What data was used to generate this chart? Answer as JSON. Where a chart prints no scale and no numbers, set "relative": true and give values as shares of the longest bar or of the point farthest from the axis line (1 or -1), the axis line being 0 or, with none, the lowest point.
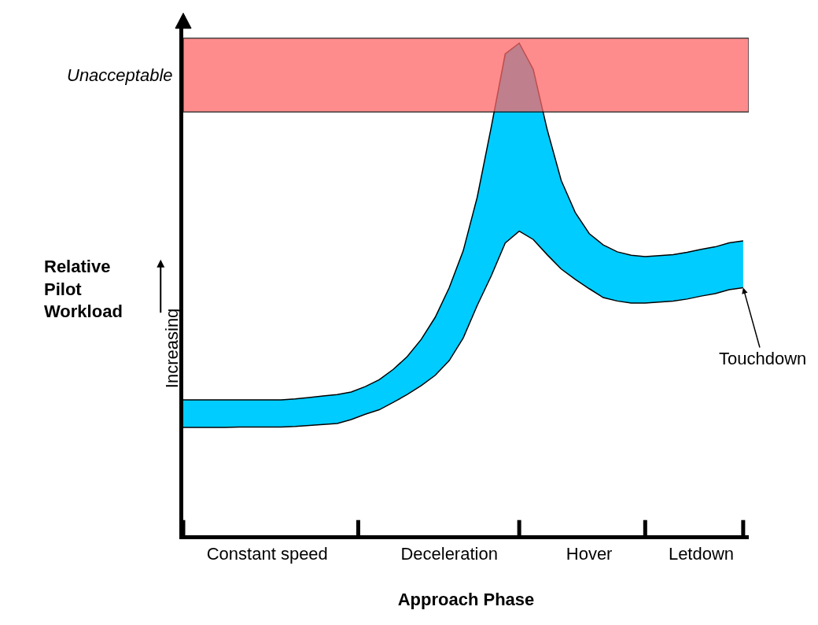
{
  "chart_data": {
    "type": "area",
    "relative": true,
    "xlabel": "Approach Phase",
    "ylabel": "Relative Pilot Workload",
    "categories": [
      null,
      null,
      null,
      null,
      null,
      null,
      "Constant speed",
      null,
      null,
      null,
      null,
      null,
      null,
      null,
      null,
      null,
      null,
      null,
      null,
      "Deceleration",
      null,
      null,
      null,
      null,
      null,
      null,
      null,
      null,
      null,
      "Hover",
      null,
      null,
      null,
      null,
      null,
      null,
      null,
      "Letdown",
      null,
      null,
      null
    ],
    "series": [
      {
        "color": "#ffffff",
        "values": [
          0.219,
          0.219,
          0.219,
          0.219,
          0.22,
          0.22,
          0.22,
          0.22,
          0.221,
          0.223,
          0.225,
          0.227,
          0.235,
          0.246,
          0.255,
          0.27,
          0.286,
          0.304,
          0.325,
          0.355,
          0.401,
          0.467,
          0.527,
          0.594,
          0.618,
          0.601,
          0.57,
          0.541,
          0.52,
          0.501,
          0.483,
          0.476,
          0.472,
          0.472,
          0.474,
          0.476,
          0.48,
          0.486,
          0.491,
          0.499,
          0.503
        ]
      },
      {
        "color": "#00ccff",
        "values": [
          0.056,
          0.056,
          0.056,
          0.056,
          0.055,
          0.055,
          0.055,
          0.055,
          0.056,
          0.057,
          0.058,
          0.059,
          0.056,
          0.056,
          0.061,
          0.067,
          0.077,
          0.094,
          0.118,
          0.148,
          0.177,
          0.22,
          0.302,
          0.384,
          0.382,
          0.346,
          0.254,
          0.18,
          0.136,
          0.112,
          0.107,
          0.1,
          0.097,
          0.094,
          0.094,
          0.094,
          0.095,
          0.095,
          0.095,
          0.095,
          0.095
        ]
      }
    ],
    "stacked": true,
    "bands": [
      {
        "axis": "y",
        "from": 0.86,
        "to": 1.01,
        "label": "Unacceptable",
        "color": "#ff6666"
      }
    ],
    "annotations": [
      "Increasing",
      "Touchdown"
    ]
  }
}
